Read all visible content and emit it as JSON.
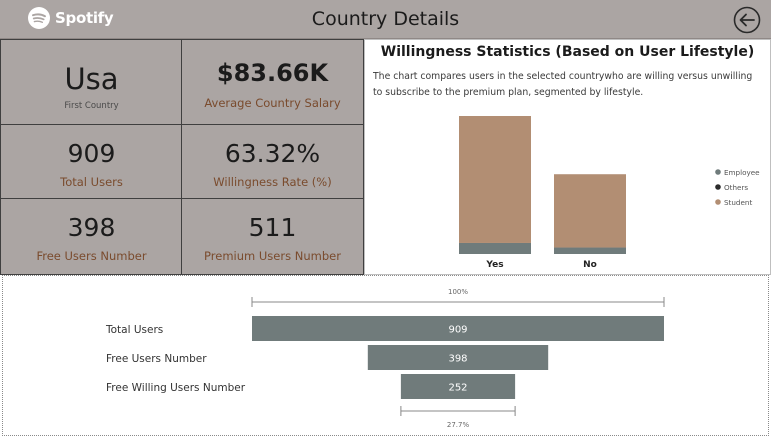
{
  "header": {
    "logo_text": "Spotify",
    "title": "Country Details",
    "back_icon": "back-arrow-icon"
  },
  "kpis": [
    {
      "value": "Usa",
      "label": "First Country"
    },
    {
      "value": "$83.66K",
      "label": "Average Country Salary"
    },
    {
      "value": "909",
      "label": "Total Users"
    },
    {
      "value": "63.32%",
      "label": "Willingness Rate (%)"
    },
    {
      "value": "398",
      "label": "Free Users Number"
    },
    {
      "value": "511",
      "label": "Premium Users Number"
    }
  ],
  "colors": {
    "panel": "#aba5a3",
    "label_brown": "#7a4b2d",
    "student": "#b28e73",
    "employee": "#6f7b7b",
    "others": "#2b2b2b",
    "funnel": "#707b7b"
  },
  "chart_data": [
    {
      "type": "bar",
      "stacked": true,
      "title": "Willingness Statistics (Based on User Lifestyle)",
      "description": "The chart compares users in the selected countrywho are willing versus unwilling to subscribe to the premium plan, segmented by lifestyle.",
      "categories": [
        "Yes",
        "No"
      ],
      "series": [
        {
          "name": "Employee",
          "values": [
            46,
            27
          ]
        },
        {
          "name": "Others",
          "values": [
            0,
            0
          ]
        },
        {
          "name": "Student",
          "values": [
            530,
            306
          ]
        }
      ],
      "legend": [
        "Employee",
        "Others",
        "Student"
      ],
      "legend_position": "right",
      "grid": false
    },
    {
      "type": "funnel",
      "top_label": "100%",
      "bottom_label": "27.7%",
      "categories": [
        "Total Users",
        "Free Users Number",
        "Free Willing Users Number"
      ],
      "values": [
        909,
        398,
        252
      ]
    }
  ]
}
